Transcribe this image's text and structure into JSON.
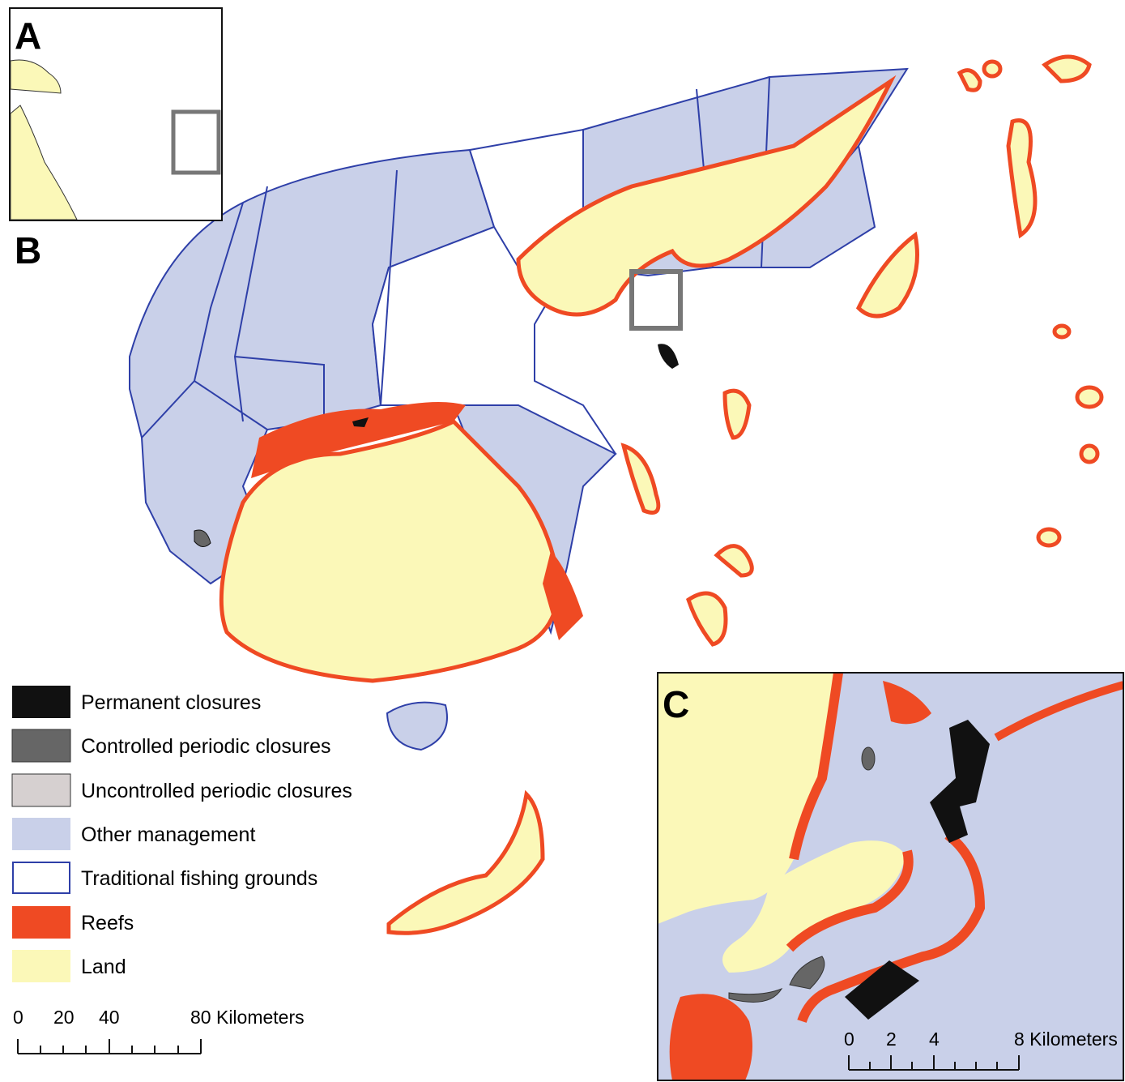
{
  "panels": {
    "a": "A",
    "b": "B",
    "c": "C"
  },
  "legend": [
    "Permanent closures",
    "Controlled periodic closures",
    "Uncontrolled periodic closures",
    "Other management",
    "Traditional fishing grounds",
    "Reefs",
    "Land"
  ],
  "scale_main": [
    "0",
    "20",
    "40",
    "80 Kilometers"
  ],
  "scale_inset": [
    "0",
    "2",
    "4",
    "8 Kilometers"
  ]
}
